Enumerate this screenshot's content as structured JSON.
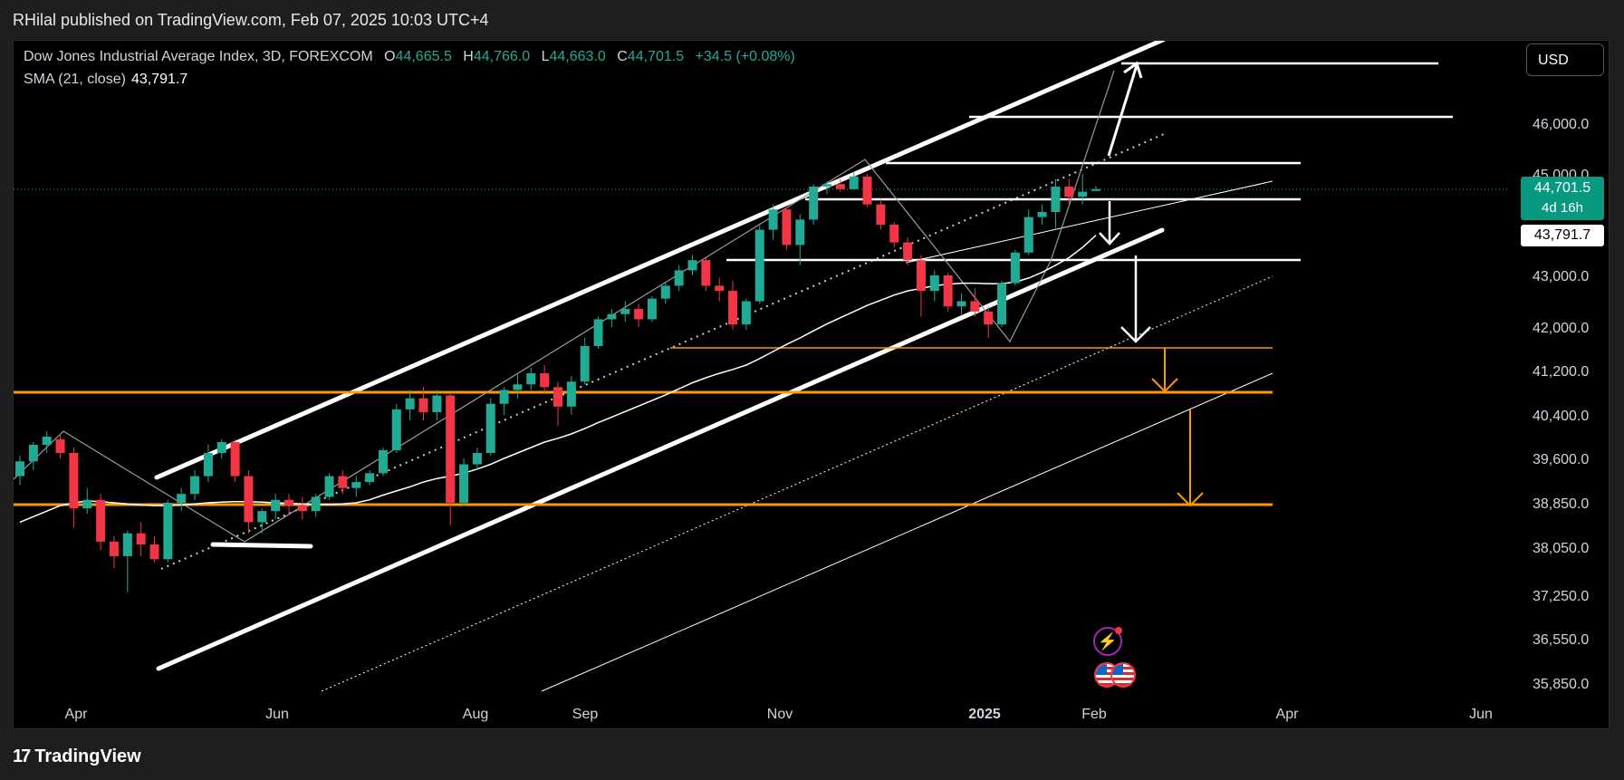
{
  "publisher": "RHilal published on TradingView.com, Feb 07, 2025 10:03 UTC+4",
  "legend": {
    "symbol": "Dow Jones Industrial Average Index, 3D, FOREXCOM",
    "o_label": "O",
    "o_value": "44,665.5",
    "h_label": "H",
    "h_value": "44,766.0",
    "l_label": "L",
    "l_value": "44,663.0",
    "c_label": "C",
    "c_value": "44,701.5",
    "change": "+34.5 (+0.08%)",
    "sma_label": "SMA (21, close)",
    "sma_value": "43,791.7"
  },
  "currency": "USD",
  "price_tag": {
    "price": "44,701.5",
    "countdown": "4d 16h"
  },
  "sma_tag": "43,791.7",
  "brand": "TradingView",
  "colors": {
    "up": "#22ab94",
    "down": "#f23645",
    "background": "#000000",
    "orange": "#ff9800",
    "line": "#ffffff"
  },
  "icons": [
    "lightning-event-icon",
    "us-flag-icon"
  ],
  "chart_data": {
    "type": "candlestick",
    "title": "",
    "xlabel": "",
    "ylabel": "",
    "y_ticks": [
      "46,000.0",
      "45,000.0",
      "43,000.0",
      "42,000.0",
      "41,200.0",
      "40,400.0",
      "39,600.0",
      "38,850.0",
      "38,050.0",
      "37,250.0",
      "36,550.0",
      "35,850.0"
    ],
    "x_ticks": [
      "Apr",
      "Jun",
      "Aug",
      "Sep",
      "Nov",
      "2025",
      "Feb",
      "Apr",
      "Jun"
    ],
    "series": [
      {
        "name": "DJI 3D",
        "candles": [
          [
            39300,
            39650,
            39150,
            39550
          ],
          [
            39550,
            39900,
            39400,
            39850
          ],
          [
            39850,
            40100,
            39700,
            40000
          ],
          [
            39950,
            40050,
            39600,
            39700
          ],
          [
            39700,
            39800,
            38400,
            38750
          ],
          [
            38750,
            39100,
            38650,
            38900
          ],
          [
            38900,
            39000,
            38000,
            38150
          ],
          [
            38150,
            38250,
            37700,
            37900
          ],
          [
            37900,
            38350,
            37300,
            38300
          ],
          [
            38300,
            38500,
            37900,
            38100
          ],
          [
            38100,
            38250,
            37800,
            37850
          ],
          [
            37850,
            38900,
            37800,
            38850
          ],
          [
            38850,
            39100,
            38700,
            39000
          ],
          [
            39000,
            39400,
            38900,
            39300
          ],
          [
            39300,
            39850,
            39200,
            39700
          ],
          [
            39700,
            39950,
            39600,
            39900
          ],
          [
            39900,
            39950,
            39200,
            39300
          ],
          [
            39300,
            39400,
            38300,
            38500
          ],
          [
            38500,
            38750,
            38300,
            38700
          ],
          [
            38700,
            39000,
            38550,
            38900
          ],
          [
            38900,
            39000,
            38650,
            38800
          ],
          [
            38800,
            38950,
            38550,
            38700
          ],
          [
            38700,
            39000,
            38600,
            38950
          ],
          [
            38950,
            39350,
            38900,
            39300
          ],
          [
            39300,
            39400,
            39000,
            39100
          ],
          [
            39100,
            39300,
            38950,
            39200
          ],
          [
            39200,
            39400,
            39150,
            39350
          ],
          [
            39350,
            39800,
            39300,
            39750
          ],
          [
            39750,
            40600,
            39700,
            40500
          ],
          [
            40500,
            40850,
            40300,
            40700
          ],
          [
            40700,
            40900,
            40300,
            40450
          ],
          [
            40450,
            40850,
            40300,
            40750
          ],
          [
            40750,
            40800,
            38450,
            38850
          ],
          [
            38850,
            39600,
            38800,
            39500
          ],
          [
            39500,
            39800,
            39400,
            39700
          ],
          [
            39700,
            40700,
            39650,
            40600
          ],
          [
            40600,
            40900,
            40400,
            40850
          ],
          [
            40850,
            41150,
            40700,
            40950
          ],
          [
            40950,
            41250,
            40850,
            41150
          ],
          [
            41150,
            41300,
            40800,
            40900
          ],
          [
            40900,
            41000,
            40200,
            40550
          ],
          [
            40550,
            41100,
            40400,
            41000
          ],
          [
            41000,
            41800,
            40950,
            41650
          ],
          [
            41650,
            42200,
            41600,
            42150
          ],
          [
            42150,
            42350,
            42000,
            42250
          ],
          [
            42250,
            42500,
            42100,
            42350
          ],
          [
            42350,
            42450,
            42000,
            42150
          ],
          [
            42150,
            42600,
            42100,
            42550
          ],
          [
            42550,
            42850,
            42450,
            42800
          ],
          [
            42800,
            43200,
            42700,
            43100
          ],
          [
            43100,
            43400,
            43000,
            43300
          ],
          [
            43300,
            43350,
            42700,
            42800
          ],
          [
            42800,
            42950,
            42500,
            42700
          ],
          [
            42700,
            42900,
            41950,
            42050
          ],
          [
            42050,
            42550,
            41950,
            42500
          ],
          [
            42500,
            44000,
            42450,
            43900
          ],
          [
            43900,
            44400,
            43700,
            44300
          ],
          [
            44300,
            44350,
            43500,
            43600
          ],
          [
            43600,
            44200,
            43200,
            44100
          ],
          [
            44100,
            44800,
            44000,
            44750
          ],
          [
            44750,
            44850,
            44600,
            44800
          ],
          [
            44800,
            44900,
            44650,
            44700
          ],
          [
            44700,
            45050,
            44700,
            44950
          ],
          [
            44950,
            45000,
            44350,
            44400
          ],
          [
            44400,
            44500,
            43900,
            44000
          ],
          [
            44000,
            44050,
            43550,
            43650
          ],
          [
            43650,
            43750,
            43200,
            43300
          ],
          [
            43300,
            43400,
            42200,
            42700
          ],
          [
            42700,
            43100,
            42500,
            43000
          ],
          [
            43000,
            43050,
            42300,
            42400
          ],
          [
            42400,
            42650,
            42250,
            42500
          ],
          [
            42500,
            42750,
            42200,
            42300
          ],
          [
            42300,
            42400,
            41800,
            42050
          ],
          [
            42050,
            42900,
            42000,
            42850
          ],
          [
            42850,
            43500,
            42800,
            43450
          ],
          [
            43450,
            44300,
            43400,
            44150
          ],
          [
            44150,
            44400,
            44000,
            44250
          ],
          [
            44250,
            44900,
            43900,
            44750
          ],
          [
            44750,
            44900,
            44400,
            44550
          ],
          [
            44550,
            45000,
            44400,
            44650
          ],
          [
            44665.5,
            44766,
            44663,
            44701.5
          ]
        ]
      },
      {
        "name": "SMA (21, close)",
        "values": [
          38500,
          38600,
          38700,
          38800,
          38850,
          38880,
          38870,
          38850,
          38830,
          38810,
          38800,
          38800,
          38810,
          38830,
          38850,
          38860,
          38870,
          38870,
          38860,
          38850,
          38840,
          38830,
          38820,
          38820,
          38830,
          38850,
          38900,
          38980,
          39050,
          39120,
          39200,
          39260,
          39300,
          39350,
          39420,
          39500,
          39600,
          39700,
          39800,
          39900,
          39970,
          40050,
          40150,
          40260,
          40360,
          40460,
          40560,
          40660,
          40760,
          40870,
          40980,
          41070,
          41150,
          41220,
          41300,
          41420,
          41550,
          41680,
          41800,
          41930,
          42060,
          42180,
          42300,
          42420,
          42520,
          42620,
          42700,
          42750,
          42800,
          42830,
          42850,
          42850,
          42840,
          42840,
          42870,
          42950,
          43060,
          43200,
          43350,
          43550,
          43791.7
        ]
      }
    ],
    "annotations": [
      "ascending channel",
      "horizontal resistance levels",
      "orange support levels",
      "projected targets"
    ]
  }
}
